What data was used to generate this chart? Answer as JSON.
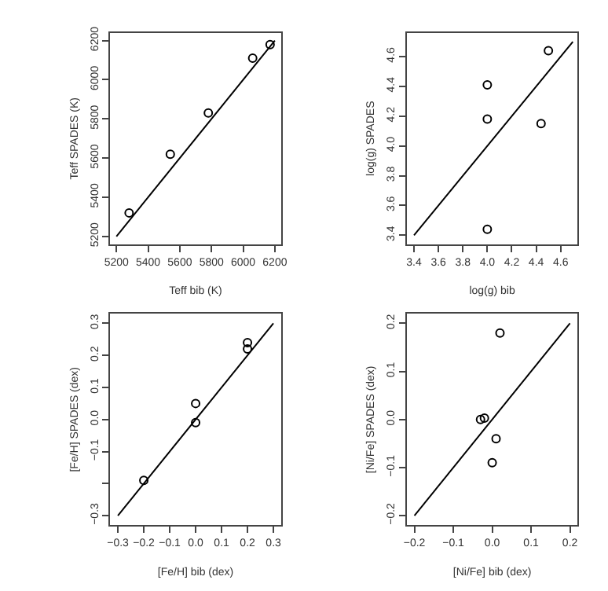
{
  "chart_data": [
    {
      "type": "scatter",
      "xlabel": "Teff bib (K)",
      "ylabel": "Teff SPADES (K)",
      "xlim": [
        5160,
        6240
      ],
      "ylim": [
        5160,
        6240
      ],
      "xticks": [
        5200,
        5400,
        5600,
        5800,
        6000,
        6200
      ],
      "yticks": [
        5200,
        5400,
        5600,
        5800,
        6000,
        6200
      ],
      "series": [
        {
          "color": "#000000",
          "marker": "circle",
          "x": [
            5280,
            5540,
            5780,
            6060,
            6170
          ],
          "values": [
            5320,
            5620,
            5830,
            6110,
            6180
          ]
        },
        {
          "type": "line",
          "marker": "none",
          "color": "#000000",
          "x": [
            5200,
            6200
          ],
          "values": [
            5200,
            6200
          ]
        }
      ]
    },
    {
      "type": "scatter",
      "xlabel": "log(g) bib",
      "ylabel": "log(g) SPADES",
      "xlim": [
        3.34,
        4.74
      ],
      "ylim": [
        3.34,
        4.76
      ],
      "xticks": [
        3.4,
        3.6,
        3.8,
        {
          "value": 4.0,
          "label": "4.0"
        },
        4.2,
        4.4,
        4.6
      ],
      "yticks": [
        3.4,
        3.6,
        3.8,
        {
          "value": 4.0,
          "label": "4.0"
        },
        4.2,
        4.4,
        4.6
      ],
      "series": [
        {
          "color": "#000000",
          "marker": "circle",
          "x": [
            4.0,
            4.0,
            4.0,
            4.44,
            4.5
          ],
          "values": [
            4.41,
            4.18,
            3.44,
            4.15,
            4.64
          ]
        },
        {
          "type": "line",
          "marker": "none",
          "color": "#000000",
          "x": [
            3.4,
            4.7
          ],
          "values": [
            3.4,
            4.7
          ]
        }
      ]
    },
    {
      "type": "scatter",
      "xlabel": "[Fe/H] bib (dex)",
      "ylabel": "[Fe/H] SPADES (dex)",
      "xlim": [
        -0.33,
        0.33
      ],
      "ylim": [
        -0.33,
        0.33
      ],
      "xticks": [
        {
          "value": -0.3,
          "label": "−0.3"
        },
        {
          "value": -0.2,
          "label": "−0.2"
        },
        {
          "value": -0.1,
          "label": "−0.1"
        },
        {
          "value": 0.0,
          "label": "0.0"
        },
        0.1,
        0.2,
        0.3
      ],
      "yticks": [
        {
          "value": -0.3,
          "label": "−0.3"
        },
        {
          "value": -0.2,
          "label": null
        },
        {
          "value": -0.1,
          "label": "−0.1"
        },
        {
          "value": 0.0,
          "label": "0.0"
        },
        0.1,
        0.2,
        0.3
      ],
      "series": [
        {
          "color": "#000000",
          "marker": "circle",
          "x": [
            -0.2,
            0.0,
            0.0,
            0.2,
            0.2
          ],
          "values": [
            -0.19,
            0.05,
            -0.01,
            0.24,
            0.22
          ]
        },
        {
          "type": "line",
          "marker": "none",
          "color": "#000000",
          "x": [
            -0.3,
            0.3
          ],
          "values": [
            -0.3,
            0.3
          ]
        }
      ]
    },
    {
      "type": "scatter",
      "xlabel": "[Ni/Fe] bib (dex)",
      "ylabel": "[Ni/Fe] SPADES (dex)",
      "xlim": [
        -0.22,
        0.22
      ],
      "ylim": [
        -0.22,
        0.22
      ],
      "xticks": [
        {
          "value": -0.2,
          "label": "−0.2"
        },
        {
          "value": -0.1,
          "label": "−0.1"
        },
        {
          "value": 0.0,
          "label": "0.0"
        },
        0.1,
        0.2
      ],
      "yticks": [
        {
          "value": -0.2,
          "label": "−0.2"
        },
        {
          "value": -0.1,
          "label": "−0.1"
        },
        {
          "value": 0.0,
          "label": "0.0"
        },
        0.1,
        0.2
      ],
      "series": [
        {
          "color": "#000000",
          "marker": "circle",
          "x": [
            0.02,
            -0.03,
            -0.02,
            0.01,
            0.0
          ],
          "values": [
            0.18,
            0.0,
            0.003,
            -0.04,
            -0.09
          ]
        },
        {
          "type": "line",
          "marker": "none",
          "color": "#000000",
          "x": [
            -0.2,
            0.2
          ],
          "values": [
            -0.2,
            0.2
          ]
        }
      ]
    }
  ]
}
